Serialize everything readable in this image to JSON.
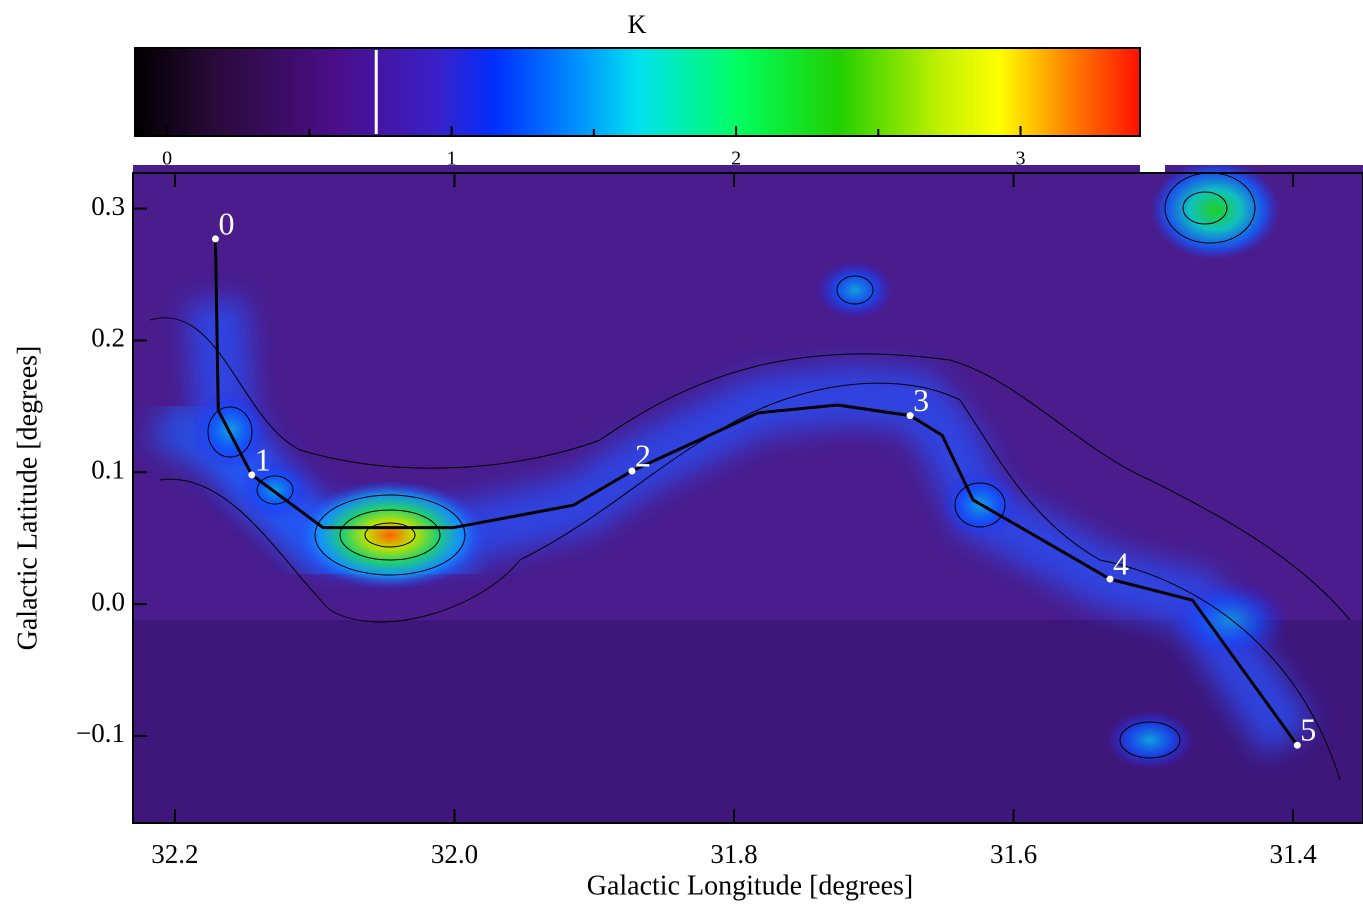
{
  "chart_data": {
    "type": "map",
    "title": "K",
    "x_label": "Galactic Longitude [degrees]",
    "y_label": "Galactic Latitude [degrees]",
    "xlim": [
      32.23,
      31.35
    ],
    "ylim": [
      -0.166,
      0.327
    ],
    "xticks": [
      32.2,
      {
        "value": 32.0,
        "label": "32.0"
      },
      31.8,
      31.6,
      31.4
    ],
    "yticks": [
      {
        "value": -0.1,
        "label": "−0.1"
      },
      {
        "value": 0,
        "label": "0.0"
      },
      0.1,
      0.2,
      0.3
    ],
    "spine": {
      "color": "#000000",
      "x": [
        32.171,
        32.169,
        32.145,
        32.094,
        32.001,
        31.915,
        31.873,
        31.783,
        31.726,
        31.674,
        31.651,
        31.629,
        31.531,
        31.472,
        31.397
      ],
      "y": [
        0.277,
        0.147,
        0.098,
        0.058,
        0.058,
        0.075,
        0.101,
        0.145,
        0.151,
        0.143,
        0.128,
        0.079,
        0.019,
        0.003,
        -0.107
      ]
    },
    "points": {
      "color": "#ffffff",
      "labels": [
        "0",
        "1",
        "2",
        "3",
        "4",
        "5"
      ],
      "x": [
        32.171,
        32.145,
        31.873,
        31.674,
        31.531,
        31.397
      ],
      "y": [
        0.277,
        0.098,
        0.101,
        0.143,
        0.019,
        -0.107
      ]
    },
    "colorbar": {
      "lim": [
        -0.113,
        3.42
      ],
      "ticks": [
        0,
        1,
        2,
        3
      ],
      "minor_ticks": [
        0.5,
        1.5,
        2.5
      ],
      "marker": 0.735
    }
  }
}
